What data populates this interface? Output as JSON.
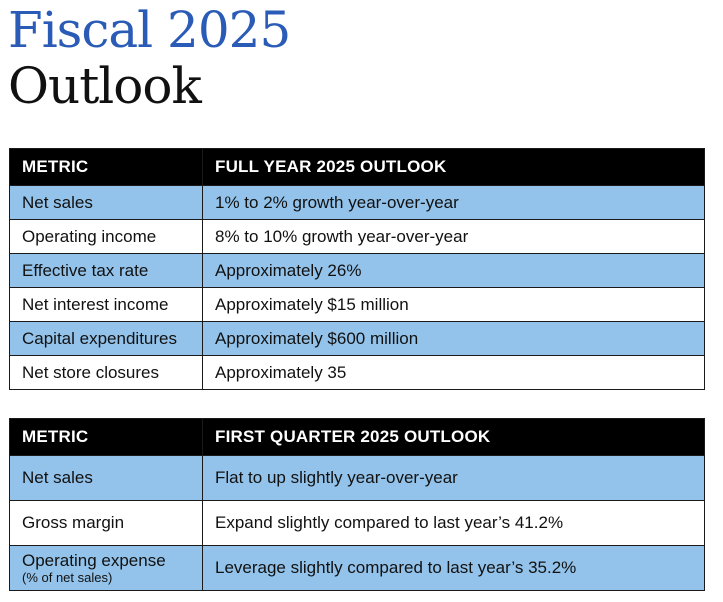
{
  "title": {
    "line1": "Fiscal 2025",
    "line2": "Outlook"
  },
  "colors": {
    "title_accent": "#2a5bb6",
    "header_bg": "#000000",
    "row_highlight": "#93c3ea"
  },
  "full_year_table": {
    "headers": [
      "METRIC",
      "FULL YEAR 2025 OUTLOOK"
    ],
    "rows": [
      {
        "metric": "Net sales",
        "outlook": "1% to 2% growth year-over-year"
      },
      {
        "metric": "Operating income",
        "outlook": "8% to 10% growth year-over-year"
      },
      {
        "metric": "Effective tax rate",
        "outlook": "Approximately 26%"
      },
      {
        "metric": "Net interest income",
        "outlook": "Approximately $15 million"
      },
      {
        "metric": "Capital expenditures",
        "outlook": "Approximately $600 million"
      },
      {
        "metric": "Net store closures",
        "outlook": "Approximately 35"
      }
    ]
  },
  "first_quarter_table": {
    "headers": [
      "METRIC",
      "FIRST QUARTER 2025 OUTLOOK"
    ],
    "rows": [
      {
        "metric": "Net sales",
        "outlook": "Flat to up slightly year-over-year"
      },
      {
        "metric": "Gross margin",
        "outlook": "Expand slightly compared to last year’s 41.2%"
      },
      {
        "metric": "Operating expense",
        "metric_sub": "(% of net sales)",
        "outlook": "Leverage slightly compared to last year’s 35.2%"
      }
    ]
  }
}
